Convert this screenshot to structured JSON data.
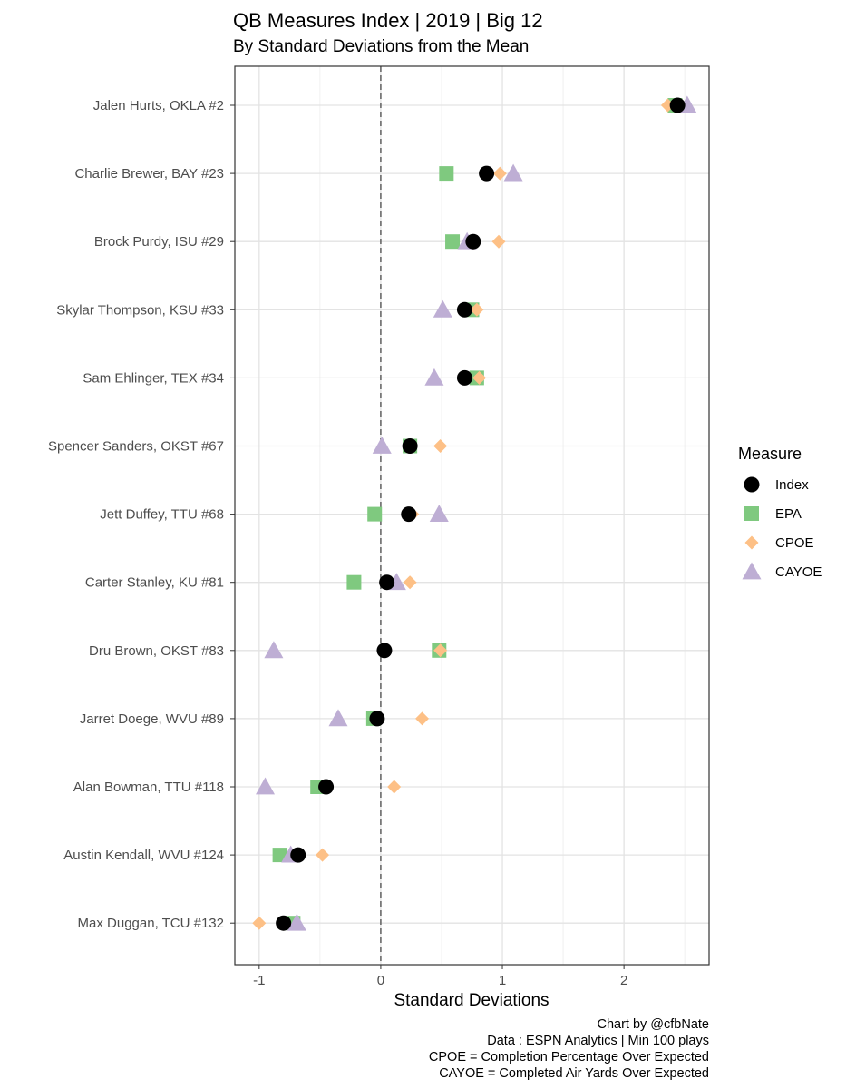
{
  "chart_data": {
    "type": "scatter",
    "title": "QB Measures Index | 2019 | Big 12",
    "subtitle": "By Standard Deviations from the Mean",
    "xlabel": "Standard Deviations",
    "ylabel": "",
    "xlim": [
      -1.2,
      2.7
    ],
    "xticks": [
      "-1",
      "0",
      "1",
      "2"
    ],
    "xtick_values": [
      -1,
      0,
      1,
      2
    ],
    "grid": true,
    "reference_line": {
      "x": 0,
      "style": "dashed"
    },
    "legend_title": "Measure",
    "legend_position": "right",
    "categories": [
      "Jalen Hurts, OKLA #2",
      "Charlie Brewer, BAY #23",
      "Brock Purdy, ISU #29",
      "Skylar Thompson, KSU #33",
      "Sam Ehlinger, TEX #34",
      "Spencer Sanders, OKST #67",
      "Jett Duffey, TTU #68",
      "Carter Stanley, KU #81",
      "Dru Brown, OKST #83",
      "Jarret Doege, WVU #89",
      "Alan Bowman, TTU #118",
      "Austin Kendall, WVU #124",
      "Max Duggan, TCU #132"
    ],
    "series": [
      {
        "name": "EPA",
        "shape": "square",
        "color": "#7fc97f",
        "values": [
          2.42,
          0.54,
          0.59,
          0.75,
          0.79,
          0.24,
          -0.05,
          -0.22,
          0.48,
          -0.06,
          -0.52,
          -0.83,
          -0.72
        ]
      },
      {
        "name": "CPOE",
        "shape": "diamond",
        "color": "#fdc086",
        "values": [
          2.36,
          0.98,
          0.97,
          0.79,
          0.81,
          0.49,
          0.26,
          0.24,
          0.49,
          0.34,
          0.11,
          -0.48,
          -1.0
        ]
      },
      {
        "name": "CAYOE",
        "shape": "triangle",
        "color": "#beaed4",
        "values": [
          2.52,
          1.09,
          0.71,
          0.51,
          0.44,
          0.01,
          0.48,
          0.13,
          -0.88,
          -0.35,
          -0.95,
          -0.74,
          -0.69
        ]
      },
      {
        "name": "Index",
        "shape": "circle",
        "color": "#000000",
        "values": [
          2.44,
          0.87,
          0.76,
          0.69,
          0.69,
          0.24,
          0.23,
          0.05,
          0.03,
          -0.03,
          -0.45,
          -0.68,
          -0.8
        ]
      }
    ],
    "legend_order": [
      "Index",
      "EPA",
      "CPOE",
      "CAYOE"
    ],
    "caption": [
      "Chart by @cfbNate",
      "Data : ESPN Analytics | Min 100 plays",
      "CPOE = Completion Percentage Over Expected",
      "CAYOE = Completed Air Yards Over Expected"
    ]
  }
}
